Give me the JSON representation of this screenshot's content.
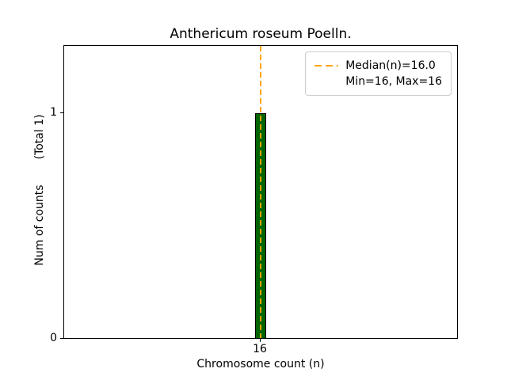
{
  "chart_data": {
    "type": "bar",
    "title": "Anthericum roseum Poelln.",
    "xlabel": "Chromosome count (n)",
    "ylabel": "Num of counts",
    "ylabel_secondary": "(Total 1)",
    "categories": [
      16
    ],
    "values": [
      1
    ],
    "bar_color": "#006400",
    "bar_edge_color": "#000000",
    "median_line": {
      "value": 16.0,
      "color": "#FFA500",
      "style": "dashed"
    },
    "xticks": [
      "16"
    ],
    "yticks": [
      "0",
      "1"
    ],
    "ylim": [
      0,
      1.3
    ],
    "grid": false,
    "legend": {
      "position": "upper right",
      "entries": [
        {
          "label": "Median(n)=16.0",
          "handle": "dashed-orange-line"
        },
        {
          "label": "Min=16, Max=16",
          "handle": null
        }
      ]
    }
  }
}
